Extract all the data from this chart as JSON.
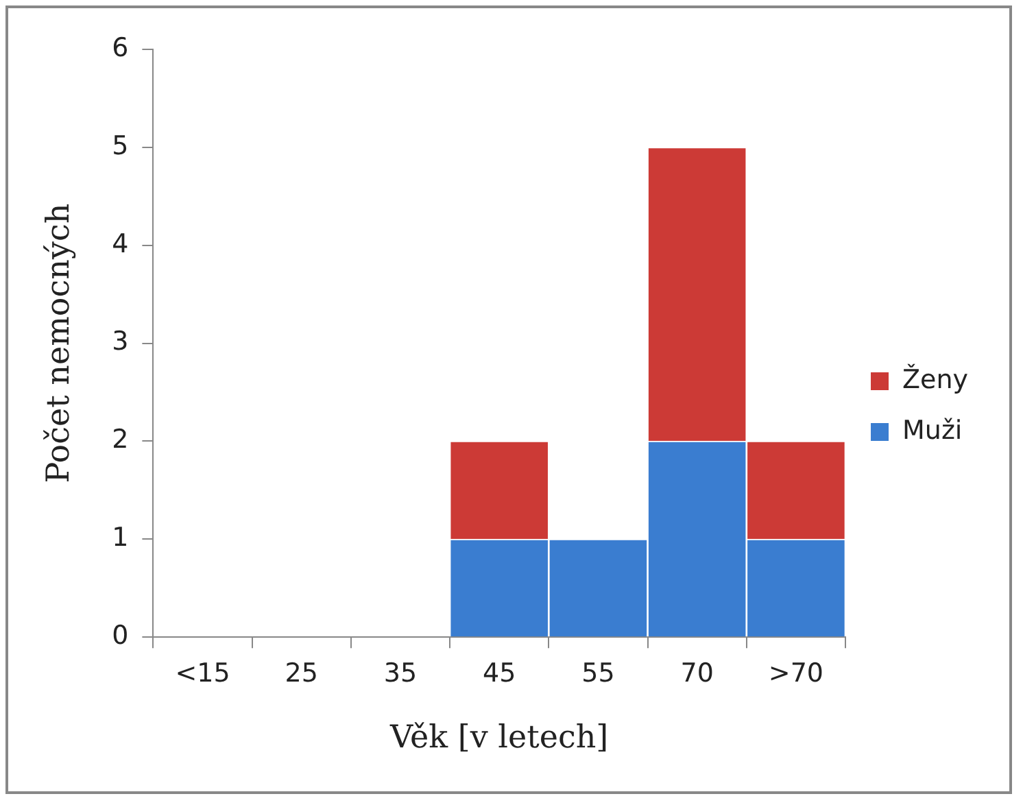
{
  "chart_data": {
    "type": "bar",
    "stacked": true,
    "xlabel": "Věk [v letech]",
    "ylabel": "Počet nemocných",
    "categories": [
      "<15",
      "25",
      "35",
      "45",
      "55",
      "70",
      ">70"
    ],
    "series": [
      {
        "name": "Muži",
        "color": "#3a7dd0",
        "values": [
          0,
          0,
          0,
          1,
          1,
          2,
          1
        ]
      },
      {
        "name": "Ženy",
        "color": "#cc3a36",
        "values": [
          0,
          0,
          0,
          1,
          0,
          3,
          1
        ]
      }
    ],
    "ylim": [
      0,
      6
    ],
    "yticks": [
      0,
      1,
      2,
      3,
      4,
      5,
      6
    ],
    "grid": false,
    "legend": "right"
  }
}
